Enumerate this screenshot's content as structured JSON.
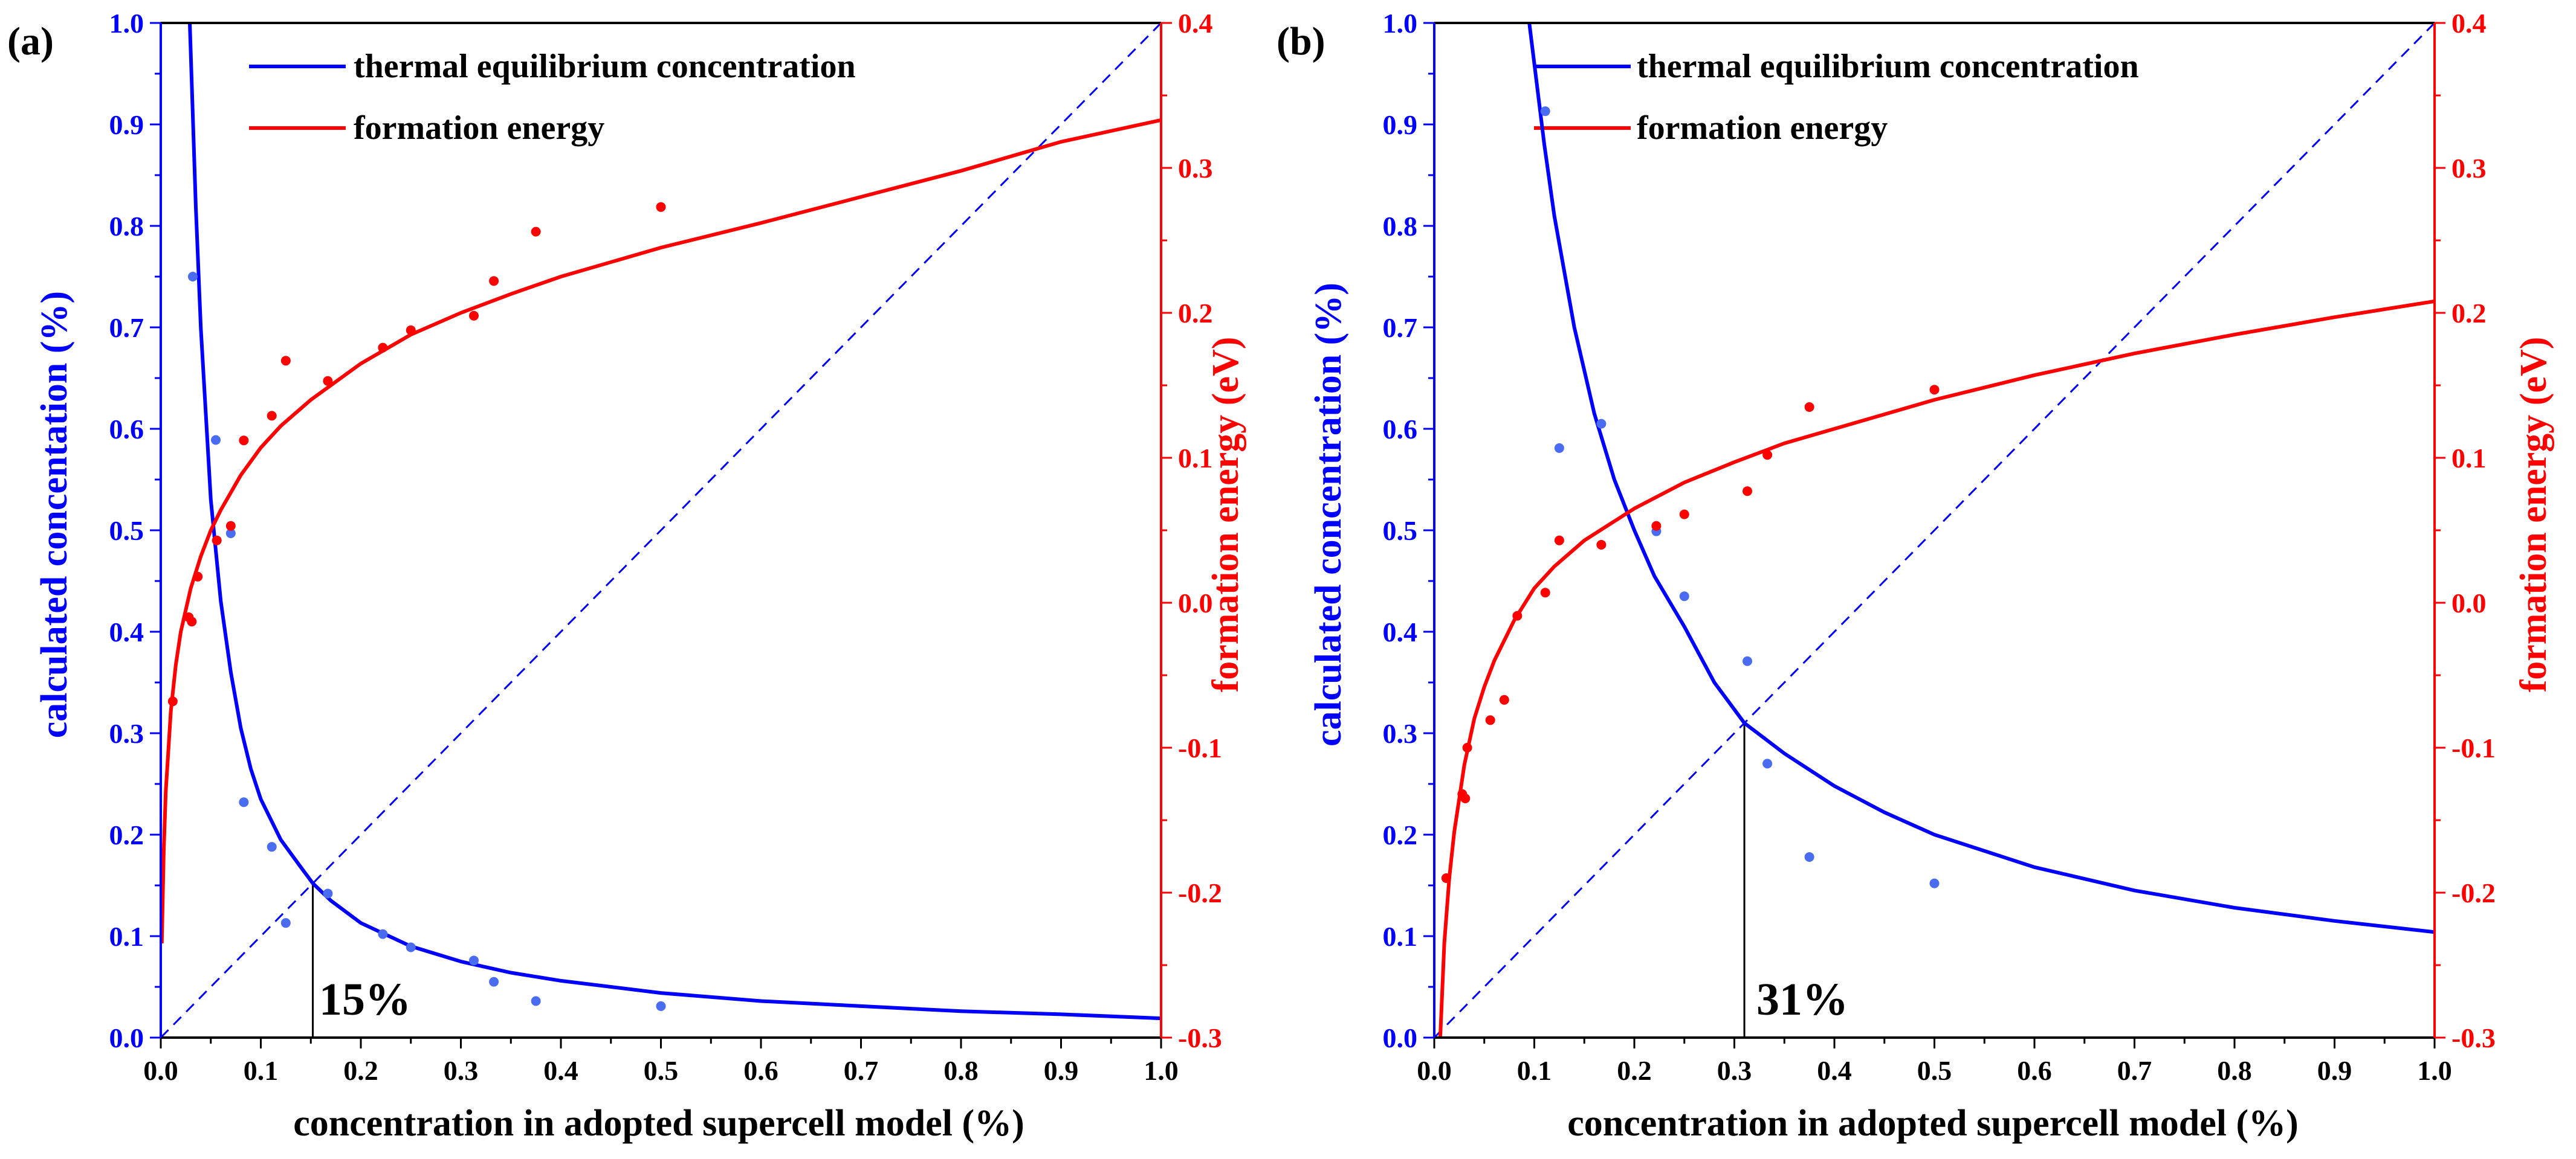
{
  "colors": {
    "blue": "#0000ff",
    "red": "#ff0000",
    "blue_points": "#4a6cf0",
    "axis": "#000000"
  },
  "chart_data": [
    {
      "type": "line",
      "panel_label": "(a)",
      "xlabel": "concentration in adopted supercell model (%)",
      "ylabel_left": "calculated concentation (%)",
      "ylabel_right": "formation energy (eV)",
      "xlim": [
        0.0,
        1.0
      ],
      "ylim_left": [
        0.0,
        1.0
      ],
      "ylim_right": [
        -0.3,
        0.4
      ],
      "x_ticks": [
        0.0,
        0.1,
        0.2,
        0.3,
        0.4,
        0.5,
        0.6,
        0.7,
        0.8,
        0.9,
        1.0
      ],
      "y_left_ticks": [
        0.0,
        0.1,
        0.2,
        0.3,
        0.4,
        0.5,
        0.6,
        0.7,
        0.8,
        0.9,
        1.0
      ],
      "y_right_ticks": [
        -0.3,
        -0.2,
        -0.1,
        0.0,
        0.1,
        0.2,
        0.3,
        0.4
      ],
      "legend": [
        "thermal equilibrium concentration",
        "formation energy"
      ],
      "annotation": {
        "text": "15%",
        "x": 0.152,
        "y": 0.152
      },
      "series": [
        {
          "name": "thermal equilibrium concentration (fit)",
          "axis": "left",
          "color": "blue",
          "kind": "curve",
          "x": [
            0.029,
            0.035,
            0.04,
            0.05,
            0.06,
            0.07,
            0.08,
            0.09,
            0.1,
            0.12,
            0.14,
            0.152,
            0.17,
            0.2,
            0.25,
            0.3,
            0.35,
            0.4,
            0.5,
            0.6,
            0.7,
            0.8,
            0.9,
            1.0
          ],
          "values": [
            1.0,
            0.82,
            0.7,
            0.53,
            0.43,
            0.36,
            0.305,
            0.265,
            0.235,
            0.195,
            0.168,
            0.152,
            0.135,
            0.113,
            0.09,
            0.075,
            0.064,
            0.056,
            0.044,
            0.036,
            0.031,
            0.026,
            0.023,
            0.019
          ]
        },
        {
          "name": "thermal equilibrium concentration (data)",
          "axis": "left",
          "color": "blue_points",
          "kind": "points",
          "x": [
            0.032,
            0.055,
            0.07,
            0.083,
            0.111,
            0.125,
            0.167,
            0.222,
            0.25,
            0.313,
            0.333,
            0.375,
            0.5
          ],
          "values": [
            0.75,
            0.589,
            0.497,
            0.232,
            0.188,
            0.113,
            0.142,
            0.102,
            0.089,
            0.076,
            0.055,
            0.036,
            0.031
          ]
        },
        {
          "name": "formation energy (fit)",
          "axis": "right",
          "color": "red",
          "kind": "curve",
          "x": [
            0.001,
            0.003,
            0.005,
            0.01,
            0.015,
            0.02,
            0.03,
            0.04,
            0.05,
            0.06,
            0.08,
            0.1,
            0.12,
            0.15,
            0.2,
            0.25,
            0.3,
            0.35,
            0.4,
            0.5,
            0.6,
            0.7,
            0.8,
            0.9,
            1.0
          ],
          "values": [
            -0.235,
            -0.17,
            -0.13,
            -0.075,
            -0.043,
            -0.02,
            0.01,
            0.032,
            0.05,
            0.064,
            0.088,
            0.107,
            0.122,
            0.14,
            0.165,
            0.185,
            0.2,
            0.213,
            0.225,
            0.245,
            0.262,
            0.28,
            0.298,
            0.318,
            0.333
          ]
        },
        {
          "name": "formation energy (data)",
          "axis": "right",
          "color": "red",
          "kind": "points",
          "x": [
            0.012,
            0.028,
            0.031,
            0.037,
            0.056,
            0.07,
            0.083,
            0.111,
            0.125,
            0.167,
            0.222,
            0.25,
            0.313,
            0.333,
            0.375,
            0.5
          ],
          "values": [
            -0.068,
            -0.01,
            -0.013,
            0.018,
            0.043,
            0.053,
            0.112,
            0.129,
            0.167,
            0.153,
            0.176,
            0.188,
            0.198,
            0.222,
            0.256,
            0.273
          ]
        }
      ]
    },
    {
      "type": "line",
      "panel_label": "(b)",
      "xlabel": "concentration in adopted supercell model (%)",
      "ylabel_left": "calculated concentration (%)",
      "ylabel_right": "formation energy (eV)",
      "xlim": [
        0.0,
        1.0
      ],
      "ylim_left": [
        0.0,
        1.0
      ],
      "ylim_right": [
        -0.3,
        0.4
      ],
      "x_ticks": [
        0.0,
        0.1,
        0.2,
        0.3,
        0.4,
        0.5,
        0.6,
        0.7,
        0.8,
        0.9,
        1.0
      ],
      "y_left_ticks": [
        0.0,
        0.1,
        0.2,
        0.3,
        0.4,
        0.5,
        0.6,
        0.7,
        0.8,
        0.9,
        1.0
      ],
      "y_right_ticks": [
        -0.3,
        -0.2,
        -0.1,
        0.0,
        0.1,
        0.2,
        0.3,
        0.4
      ],
      "legend": [
        "thermal equilibrium concentration",
        "formation energy"
      ],
      "annotation": {
        "text": "31%",
        "x": 0.31,
        "y": 0.31
      },
      "series": [
        {
          "name": "thermal equilibrium concentration (fit)",
          "axis": "left",
          "color": "blue",
          "kind": "curve",
          "x": [
            0.095,
            0.1,
            0.11,
            0.12,
            0.14,
            0.16,
            0.18,
            0.2,
            0.22,
            0.25,
            0.28,
            0.31,
            0.35,
            0.4,
            0.45,
            0.5,
            0.6,
            0.7,
            0.8,
            0.9,
            1.0
          ],
          "values": [
            1.0,
            0.96,
            0.88,
            0.81,
            0.7,
            0.615,
            0.55,
            0.5,
            0.455,
            0.405,
            0.35,
            0.31,
            0.28,
            0.248,
            0.222,
            0.2,
            0.168,
            0.145,
            0.128,
            0.115,
            0.104
          ]
        },
        {
          "name": "thermal equilibrium concentration (data)",
          "axis": "left",
          "color": "blue_points",
          "kind": "points",
          "x": [
            0.111,
            0.125,
            0.167,
            0.222,
            0.25,
            0.313,
            0.333,
            0.375,
            0.5
          ],
          "values": [
            0.913,
            0.581,
            0.605,
            0.499,
            0.435,
            0.371,
            0.27,
            0.178,
            0.152
          ]
        },
        {
          "name": "formation energy (fit)",
          "axis": "right",
          "color": "red",
          "kind": "curve",
          "x": [
            0.006,
            0.01,
            0.015,
            0.02,
            0.03,
            0.04,
            0.05,
            0.06,
            0.08,
            0.1,
            0.12,
            0.15,
            0.2,
            0.25,
            0.3,
            0.35,
            0.4,
            0.5,
            0.6,
            0.7,
            0.8,
            0.9,
            1.0
          ],
          "values": [
            -0.3,
            -0.235,
            -0.19,
            -0.158,
            -0.112,
            -0.08,
            -0.058,
            -0.04,
            -0.012,
            0.01,
            0.025,
            0.043,
            0.065,
            0.083,
            0.097,
            0.11,
            0.12,
            0.14,
            0.157,
            0.172,
            0.185,
            0.197,
            0.208
          ]
        },
        {
          "name": "formation energy (data)",
          "axis": "right",
          "color": "red",
          "kind": "points",
          "x": [
            0.012,
            0.028,
            0.031,
            0.033,
            0.056,
            0.07,
            0.083,
            0.111,
            0.125,
            0.167,
            0.222,
            0.25,
            0.313,
            0.333,
            0.375,
            0.5
          ],
          "values": [
            -0.19,
            -0.132,
            -0.135,
            -0.1,
            -0.081,
            -0.067,
            -0.009,
            0.007,
            0.043,
            0.04,
            0.053,
            0.061,
            0.077,
            0.102,
            0.135,
            0.147
          ]
        }
      ]
    }
  ]
}
